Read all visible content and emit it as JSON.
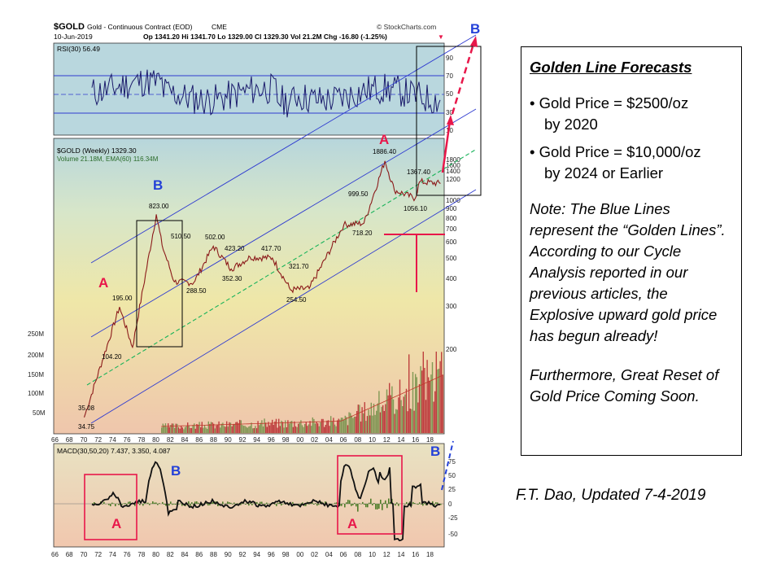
{
  "header": {
    "symbol": "$GOLD",
    "subtitle": "Gold - Continuous Contract (EOD)",
    "exchange": "CME",
    "source": "© StockCharts.com",
    "date": "10-Jun-2019",
    "ohlc": "Op 1341.20  Hi 1341.70  Lo 1329.00  Cl 1329.30  Vol 21.2M  Chg -16.80 (-1.25%)"
  },
  "rsi": {
    "label": "RSI(30) 56.49",
    "ticks": [
      "90",
      "70",
      "50",
      "30",
      "10"
    ]
  },
  "price": {
    "label": "$GOLD (Weekly) 1329.30",
    "volume_label": "Volume 21.18M, EMA(60) 116.34M",
    "ticks": [
      "1800",
      "1600",
      "1400",
      "1200",
      "1000",
      "900",
      "800",
      "700",
      "600",
      "500",
      "400",
      "300",
      "200",
      "100"
    ],
    "volume_ticks": [
      "250M",
      "200M",
      "150M",
      "100M",
      "50M"
    ]
  },
  "annotations": {
    "price_labels": [
      "35.08",
      "34.75",
      "195.00",
      "104.20",
      "823.00",
      "510.50",
      "288.50",
      "502.00",
      "423.20",
      "352.30",
      "417.70",
      "321.70",
      "254.50",
      "999.50",
      "718.20",
      "1886.40",
      "1367.40",
      "1056.10"
    ],
    "letters": {
      "a1": "A",
      "b1": "B",
      "a2": "A",
      "b2": "B",
      "macd_a1": "A",
      "macd_b": "B",
      "macd_a2": "A",
      "macd_b2": "B"
    }
  },
  "x_axis": {
    "years": [
      "66",
      "68",
      "70",
      "72",
      "74",
      "76",
      "78",
      "80",
      "82",
      "84",
      "86",
      "88",
      "90",
      "92",
      "94",
      "96",
      "98",
      "00",
      "02",
      "04",
      "06",
      "08",
      "10",
      "12",
      "14",
      "16",
      "18"
    ]
  },
  "macd": {
    "label": "MACD(30,50,20) 7.437, 3.350, 4.087",
    "ticks": [
      "75",
      "50",
      "25",
      "0",
      "-25",
      "-50"
    ]
  },
  "colors": {
    "red_accent": "#e8174a",
    "blue_accent": "#2340d8",
    "channel": "#2f3bd0",
    "trend": "#19b35a",
    "price_line": "#8b1a1a"
  },
  "forecast": {
    "title": "Golden Line Forecasts",
    "bullet1": "• Gold Price = $2500/oz",
    "bullet1_cont": "by 2020",
    "bullet2": "• Gold Price = $10,000/oz",
    "bullet2_cont": "by 2024 or Earlier",
    "note": "Note: The Blue Lines represent the “Golden Lines”.  According to our Cycle Analysis reported in our previous articles,  the Explosive upward gold price has begun already!",
    "reset": "Furthermore, Great Reset of Gold Price Coming Soon."
  },
  "credit": "F.T. Dao, Updated 7-4-2019",
  "chart_data": {
    "type": "line",
    "title": "$GOLD Gold - Continuous Contract (EOD)",
    "ylabel": "",
    "xlabel": "",
    "y_scale": "log",
    "x": [
      1970,
      1974.9,
      1976.7,
      1980.0,
      1980.8,
      1982.5,
      1985.2,
      1987.9,
      1990.4,
      1993.0,
      1996.1,
      1998.6,
      2001.2,
      2006.0,
      2008.8,
      2011.7,
      2013.0,
      2015.9,
      2016.5,
      2019.4
    ],
    "series": [
      {
        "name": "$GOLD (Weekly)",
        "values": [
          35.08,
          195.0,
          104.2,
          823.0,
          510.5,
          288.5,
          285,
          502.0,
          352.3,
          423.2,
          417.7,
          254.5,
          260,
          700,
          718.2,
          1886.4,
          1200,
          1056.1,
          1367.4,
          1329.3
        ]
      }
    ],
    "ylim": [
      30,
      2000
    ]
  }
}
